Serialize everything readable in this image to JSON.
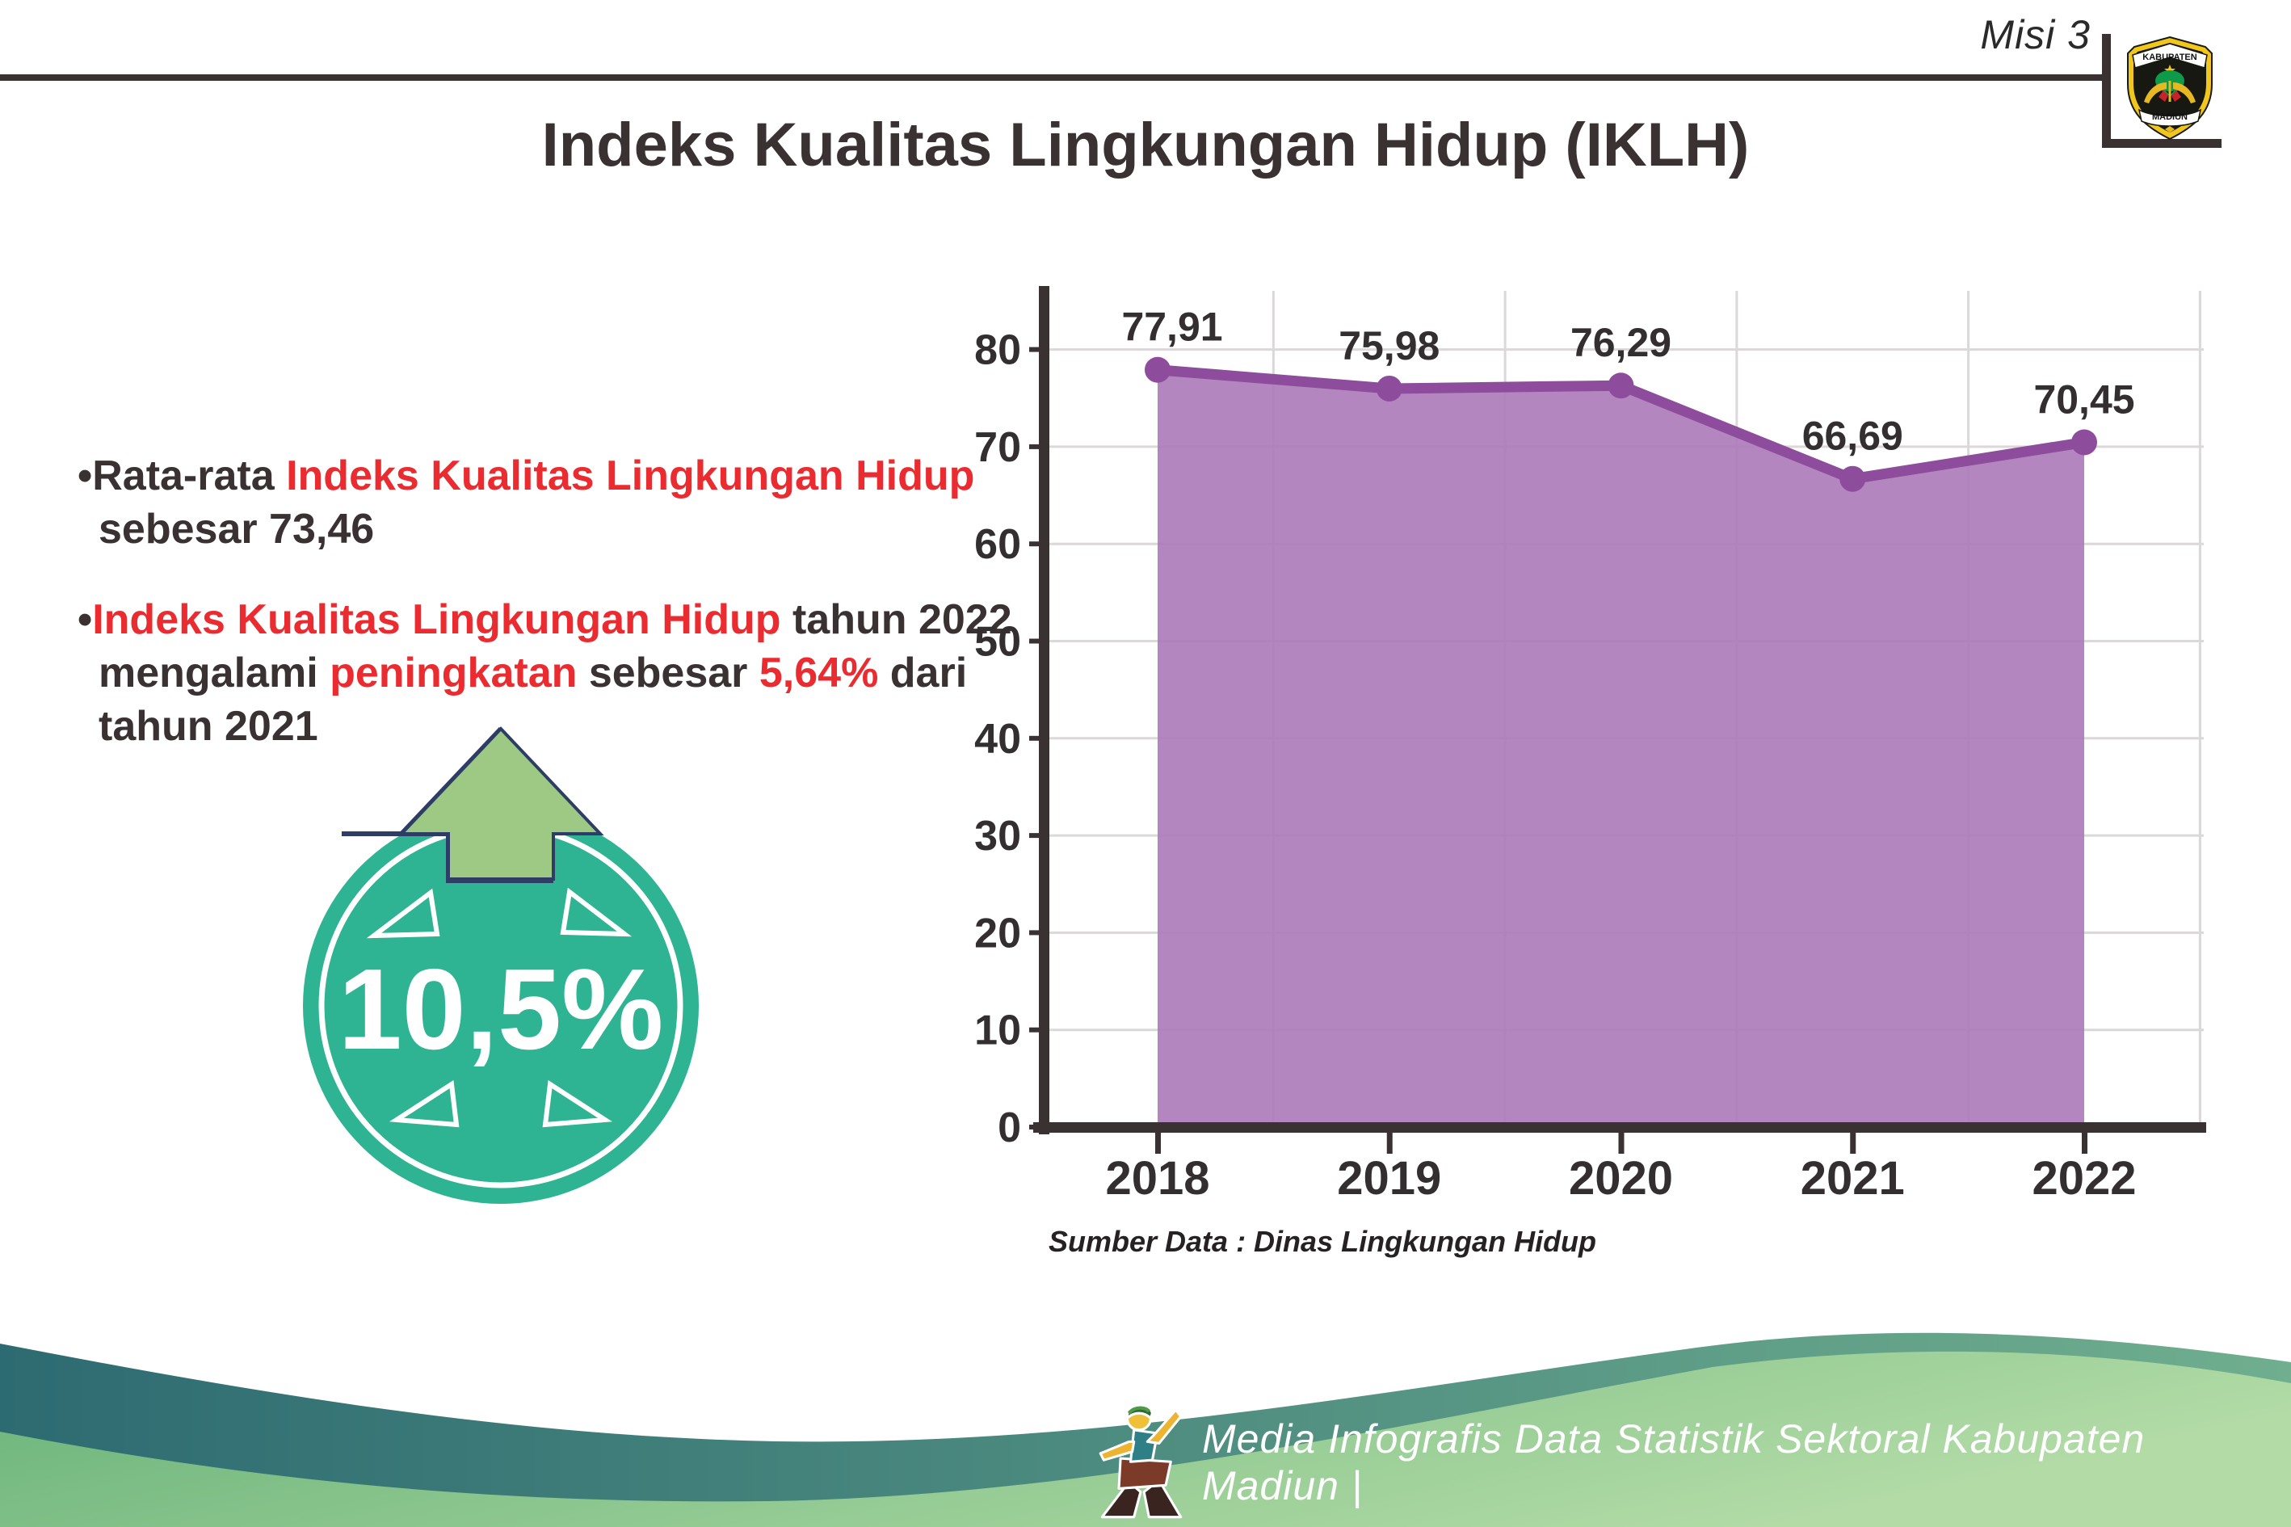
{
  "header": {
    "misi_label": "Misi 3",
    "logo": {
      "top_text": "KABUPATEN",
      "bottom_text": "MADIUN"
    }
  },
  "title": "Indeks Kualitas Lingkungan Hidup (IKLH)",
  "bullets": [
    {
      "lines": [
        [
          {
            "t": "Rata-rata ",
            "c": "dark"
          },
          {
            "t": "Indeks Kualitas Lingkungan Hidup",
            "c": "red"
          }
        ],
        [
          {
            "t": "sebesar 73,46",
            "c": "dark"
          }
        ]
      ]
    },
    {
      "lines": [
        [
          {
            "t": "Indeks Kualitas Lingkungan Hidup",
            "c": "red"
          },
          {
            "t": " tahun 2022",
            "c": "dark"
          }
        ],
        [
          {
            "t": "mengalami ",
            "c": "dark"
          },
          {
            "t": "peningkatan",
            "c": "red"
          },
          {
            "t": " sebesar ",
            "c": "dark"
          },
          {
            "t": "5,64%",
            "c": "red"
          },
          {
            "t": " dari",
            "c": "dark"
          }
        ],
        [
          {
            "t": "tahun 2021",
            "c": "dark"
          }
        ]
      ]
    }
  ],
  "badge": {
    "value": "10,5%",
    "circle_color": "#2eb492",
    "arrow_color": "#9dc985",
    "outline_color": "#2e3d66"
  },
  "chart_data": {
    "type": "area",
    "categories": [
      "2018",
      "2019",
      "2020",
      "2021",
      "2022"
    ],
    "series": [
      {
        "name": "IKLH",
        "values": [
          77.91,
          75.98,
          76.29,
          66.69,
          70.45
        ]
      }
    ],
    "value_labels": [
      "77,91",
      "75,98",
      "76,29",
      "66,69",
      "70,45"
    ],
    "title": "",
    "xlabel": "",
    "ylabel": "",
    "ylim": [
      0,
      80
    ],
    "ytick_step": 10,
    "grid": true,
    "legend": false,
    "line_color": "#8e4c9c",
    "fill_color": "#ad7cba",
    "marker_color": "#8e4c9c",
    "axis_color": "#3a3132",
    "grid_color": "#dcd7d9",
    "label_color": "#332e2f"
  },
  "source_note": "Sumber Data : Dinas Lingkungan Hidup",
  "footer": {
    "text": "Media Infografis Data Statistik Sektoral Kabupaten Madiun |"
  }
}
